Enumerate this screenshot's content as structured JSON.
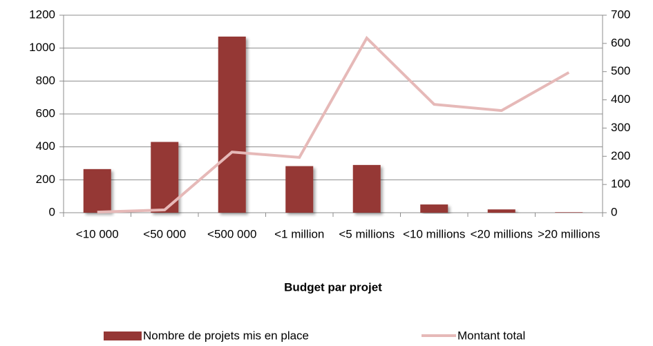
{
  "chart_data": {
    "type": "bar-line",
    "x_label": "Budget par projet",
    "categories": [
      "<10 000",
      "<50 000",
      "<500 000",
      "<1 million",
      "<5 millions",
      "<10 millions",
      "<20 millions",
      ">20 millions"
    ],
    "series": [
      {
        "name": "Nombre de projets mis en place",
        "color": "#953735",
        "type": "bar",
        "values": [
          265,
          430,
          1070,
          283,
          290,
          50,
          20,
          3
        ]
      },
      {
        "name": "Montant total",
        "color": "#e6b9b8",
        "type": "line",
        "axis": "y2",
        "values": [
          2,
          10,
          215,
          196,
          619,
          384,
          362,
          497
        ]
      }
    ],
    "ylim": [
      0,
      1200
    ],
    "yticks": [
      0,
      200,
      400,
      600,
      800,
      1000,
      1200
    ],
    "y2lim": [
      0,
      700
    ],
    "y2ticks": [
      0,
      100,
      200,
      300,
      400,
      500,
      600,
      700
    ],
    "grid": true,
    "legend": "bottom"
  }
}
